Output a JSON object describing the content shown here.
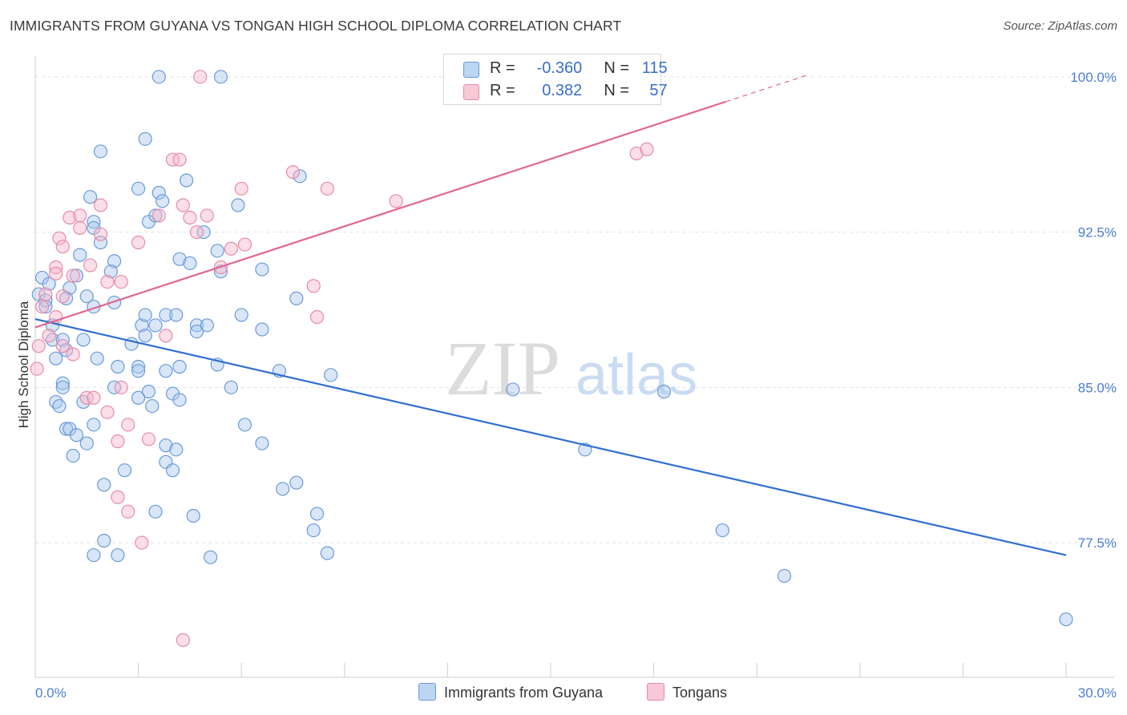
{
  "title": "IMMIGRANTS FROM GUYANA VS TONGAN HIGH SCHOOL DIPLOMA CORRELATION CHART",
  "source": "Source: ZipAtlas.com",
  "watermark": {
    "zip": "ZIP",
    "atlas": "atlas"
  },
  "colors": {
    "blue_fill": "#a8c8f0",
    "blue_stroke": "#6a9ad8",
    "blue_line": "#2f6fd0",
    "pink_fill": "#f6b8cc",
    "pink_stroke": "#e88aa8",
    "pink_line": "#e06890",
    "tick": "#4a7fd0",
    "grid": "#e2e2e2"
  },
  "legend": {
    "r_label": "R =",
    "n_label": "N =",
    "rows": [
      {
        "r": "-0.360",
        "n": "115"
      },
      {
        "r": "0.382",
        "n": "57"
      }
    ]
  },
  "chart_data": {
    "type": "scatter",
    "title": "IMMIGRANTS FROM GUYANA VS TONGAN HIGH SCHOOL DIPLOMA CORRELATION CHART",
    "xlabel": "",
    "ylabel": "High School Diploma",
    "xlim": [
      0,
      30
    ],
    "ylim": [
      71,
      101
    ],
    "x_tick_labels": [
      "0.0%",
      "30.0%"
    ],
    "y_ticks": [
      77.5,
      85.0,
      92.5,
      100.0
    ],
    "y_tick_labels": [
      "77.5%",
      "85.0%",
      "92.5%",
      "100.0%"
    ],
    "grid": true,
    "legend_position": "bottom",
    "series": [
      {
        "name": "Immigrants from Guyana",
        "trend": {
          "x": [
            0,
            30
          ],
          "y": [
            88.3,
            76.9
          ]
        },
        "points": [
          [
            3.6,
            100
          ],
          [
            5.4,
            100
          ],
          [
            1.9,
            96.4
          ],
          [
            3.2,
            97
          ],
          [
            4.4,
            95
          ],
          [
            3.0,
            94.6
          ],
          [
            3.6,
            94.4
          ],
          [
            1.6,
            94.2
          ],
          [
            3.7,
            94
          ],
          [
            5.9,
            93.8
          ],
          [
            1.7,
            93
          ],
          [
            3.3,
            93
          ],
          [
            3.5,
            93.3
          ],
          [
            1.7,
            92.7
          ],
          [
            4.9,
            92.5
          ],
          [
            1.9,
            92
          ],
          [
            5.3,
            91.6
          ],
          [
            1.3,
            91.4
          ],
          [
            2.3,
            91.1
          ],
          [
            4.2,
            91.2
          ],
          [
            4.5,
            91
          ],
          [
            2.2,
            90.6
          ],
          [
            5.4,
            90.6
          ],
          [
            6.6,
            90.7
          ],
          [
            0.2,
            90.3
          ],
          [
            0.4,
            90
          ],
          [
            1.2,
            90.4
          ],
          [
            1.0,
            89.8
          ],
          [
            0.1,
            89.5
          ],
          [
            0.3,
            89.2
          ],
          [
            0.3,
            88.9
          ],
          [
            0.9,
            89.3
          ],
          [
            1.5,
            89.4
          ],
          [
            1.7,
            88.9
          ],
          [
            2.3,
            89.1
          ],
          [
            7.6,
            89.3
          ],
          [
            0.5,
            88
          ],
          [
            3.1,
            88
          ],
          [
            3.2,
            88.5
          ],
          [
            3.5,
            88
          ],
          [
            3.8,
            88.5
          ],
          [
            4.1,
            88.5
          ],
          [
            4.7,
            88
          ],
          [
            5.0,
            88
          ],
          [
            6.0,
            88.5
          ],
          [
            6.6,
            87.8
          ],
          [
            0.5,
            87.3
          ],
          [
            0.8,
            87.3
          ],
          [
            1.4,
            87.3
          ],
          [
            2.8,
            87.1
          ],
          [
            3.2,
            87.5
          ],
          [
            4.7,
            87.7
          ],
          [
            0.9,
            86.8
          ],
          [
            0.6,
            86.4
          ],
          [
            1.8,
            86.4
          ],
          [
            2.4,
            86
          ],
          [
            3.0,
            86
          ],
          [
            3.0,
            85.8
          ],
          [
            3.8,
            85.8
          ],
          [
            4.2,
            86
          ],
          [
            5.3,
            86.1
          ],
          [
            7.1,
            85.8
          ],
          [
            8.6,
            85.6
          ],
          [
            0.8,
            85.2
          ],
          [
            0.8,
            85
          ],
          [
            2.3,
            85
          ],
          [
            3.3,
            84.8
          ],
          [
            4.0,
            84.7
          ],
          [
            5.7,
            85
          ],
          [
            0.6,
            84.3
          ],
          [
            0.7,
            84.1
          ],
          [
            1.4,
            84.3
          ],
          [
            3.0,
            84.5
          ],
          [
            3.4,
            84.1
          ],
          [
            4.2,
            84.4
          ],
          [
            0.9,
            83
          ],
          [
            1.0,
            83
          ],
          [
            1.7,
            83.2
          ],
          [
            1.2,
            82.7
          ],
          [
            1.5,
            82.3
          ],
          [
            3.8,
            82.2
          ],
          [
            4.1,
            82
          ],
          [
            6.1,
            83.2
          ],
          [
            6.6,
            82.3
          ],
          [
            1.1,
            81.7
          ],
          [
            3.8,
            81.4
          ],
          [
            4.0,
            81
          ],
          [
            2.6,
            81
          ],
          [
            2.0,
            80.3
          ],
          [
            7.2,
            80.1
          ],
          [
            7.6,
            80.4
          ],
          [
            3.5,
            79
          ],
          [
            4.6,
            78.8
          ],
          [
            8.2,
            78.9
          ],
          [
            8.1,
            78.1
          ],
          [
            2.0,
            77.6
          ],
          [
            1.7,
            76.9
          ],
          [
            2.4,
            76.9
          ],
          [
            5.1,
            76.8
          ],
          [
            8.5,
            77
          ],
          [
            13.9,
            84.9
          ],
          [
            16.0,
            82
          ],
          [
            18.3,
            84.8
          ],
          [
            20.0,
            78.1
          ],
          [
            21.8,
            75.9
          ],
          [
            30,
            73.8
          ],
          [
            7.7,
            95.2
          ]
        ]
      },
      {
        "name": "Tongans",
        "trend": {
          "x": [
            0,
            20.1
          ],
          "y": [
            87.9,
            98.8
          ]
        },
        "trend_dashed": {
          "x": [
            20.1,
            22.5
          ],
          "y": [
            98.8,
            100.1
          ]
        },
        "points": [
          [
            4.8,
            100
          ],
          [
            12.6,
            99
          ],
          [
            4.0,
            96
          ],
          [
            4.2,
            96
          ],
          [
            17.5,
            96.3
          ],
          [
            17.8,
            96.5
          ],
          [
            7.5,
            95.4
          ],
          [
            6.0,
            94.6
          ],
          [
            8.5,
            94.6
          ],
          [
            10.5,
            94
          ],
          [
            4.3,
            93.8
          ],
          [
            1.9,
            93.8
          ],
          [
            1.0,
            93.2
          ],
          [
            1.3,
            93.3
          ],
          [
            3.6,
            93.3
          ],
          [
            4.5,
            93.2
          ],
          [
            5.0,
            93.3
          ],
          [
            1.3,
            92.7
          ],
          [
            1.9,
            92.4
          ],
          [
            4.7,
            92.5
          ],
          [
            0.7,
            92.2
          ],
          [
            3.0,
            92
          ],
          [
            5.7,
            91.7
          ],
          [
            6.1,
            91.9
          ],
          [
            0.8,
            91.8
          ],
          [
            1.6,
            90.9
          ],
          [
            0.6,
            90.8
          ],
          [
            0.6,
            90.5
          ],
          [
            1.1,
            90.4
          ],
          [
            5.4,
            90.8
          ],
          [
            2.1,
            90.1
          ],
          [
            2.5,
            90.1
          ],
          [
            8.1,
            89.9
          ],
          [
            0.3,
            89.5
          ],
          [
            0.8,
            89.4
          ],
          [
            0.2,
            88.9
          ],
          [
            0.6,
            88.4
          ],
          [
            8.2,
            88.4
          ],
          [
            0.4,
            87.5
          ],
          [
            3.8,
            87.5
          ],
          [
            0.1,
            87
          ],
          [
            0.8,
            87
          ],
          [
            1.1,
            86.6
          ],
          [
            0.05,
            85.9
          ],
          [
            2.5,
            85
          ],
          [
            1.5,
            84.5
          ],
          [
            1.7,
            84.5
          ],
          [
            2.1,
            83.8
          ],
          [
            2.7,
            83.2
          ],
          [
            3.3,
            82.5
          ],
          [
            2.4,
            82.4
          ],
          [
            2.4,
            79.7
          ],
          [
            2.7,
            79
          ],
          [
            3.1,
            77.5
          ],
          [
            4.3,
            72.8
          ]
        ]
      }
    ]
  },
  "bottom_legend": [
    {
      "label": "Immigrants from Guyana"
    },
    {
      "label": "Tongans"
    }
  ]
}
